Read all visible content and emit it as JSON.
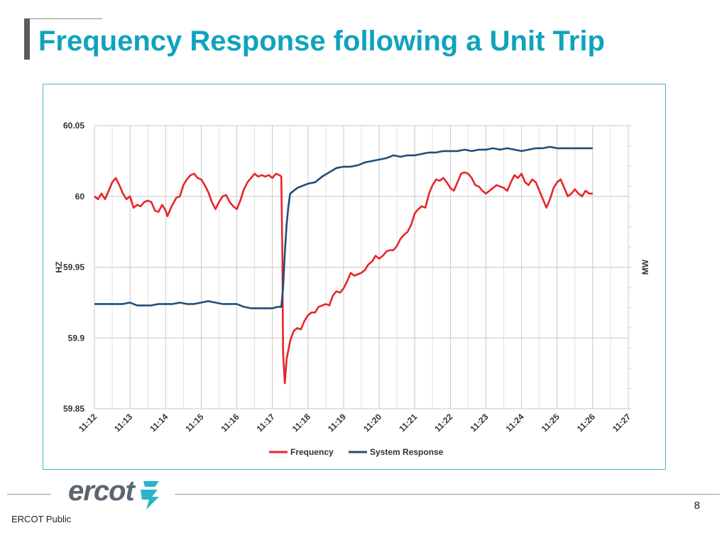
{
  "slide": {
    "title": "Frequency Response following a Unit Trip",
    "page_number": "8",
    "classification": "ERCOT Public",
    "logo_text": "ercot"
  },
  "colors": {
    "title": "#0fa3bd",
    "frequency": "#e8252b",
    "system_response": "#1f4e79",
    "frame": "#49b4c6"
  },
  "chart_data": {
    "type": "line",
    "ylabel": "HZ",
    "y2label": "MW",
    "ylim": [
      59.85,
      60.05
    ],
    "yticks": [
      60.05,
      60,
      59.95,
      59.9,
      59.85
    ],
    "ytick_labels": [
      "60.05",
      "60",
      "59.95",
      "59.9",
      "59.85"
    ],
    "xlim": [
      0,
      15
    ],
    "xtick_labels": [
      "11:12",
      "11:13",
      "11:14",
      "11:15",
      "11:16",
      "11:17",
      "11:18",
      "11:19",
      "11:20",
      "11:21",
      "11:22",
      "11:23",
      "11:24",
      "11:25",
      "11:26",
      "11:27"
    ],
    "grid": true,
    "legend_position": "bottom",
    "series": [
      {
        "name": "Frequency",
        "color": "#e8252b",
        "points": [
          [
            0.0,
            60.0
          ],
          [
            0.1,
            59.998
          ],
          [
            0.2,
            60.002
          ],
          [
            0.3,
            59.998
          ],
          [
            0.4,
            60.004
          ],
          [
            0.5,
            60.01
          ],
          [
            0.6,
            60.013
          ],
          [
            0.7,
            60.008
          ],
          [
            0.8,
            60.002
          ],
          [
            0.9,
            59.998
          ],
          [
            1.0,
            60.0
          ],
          [
            1.05,
            59.996
          ],
          [
            1.1,
            59.992
          ],
          [
            1.2,
            59.994
          ],
          [
            1.3,
            59.993
          ],
          [
            1.4,
            59.996
          ],
          [
            1.5,
            59.997
          ],
          [
            1.6,
            59.996
          ],
          [
            1.7,
            59.99
          ],
          [
            1.8,
            59.989
          ],
          [
            1.9,
            59.994
          ],
          [
            2.0,
            59.99
          ],
          [
            2.05,
            59.986
          ],
          [
            2.15,
            59.992
          ],
          [
            2.3,
            59.999
          ],
          [
            2.4,
            60.0
          ],
          [
            2.5,
            60.008
          ],
          [
            2.6,
            60.012
          ],
          [
            2.7,
            60.015
          ],
          [
            2.8,
            60.016
          ],
          [
            2.9,
            60.013
          ],
          [
            3.0,
            60.012
          ],
          [
            3.1,
            60.008
          ],
          [
            3.2,
            60.003
          ],
          [
            3.3,
            59.996
          ],
          [
            3.4,
            59.991
          ],
          [
            3.5,
            59.996
          ],
          [
            3.6,
            60.0
          ],
          [
            3.7,
            60.001
          ],
          [
            3.8,
            59.996
          ],
          [
            3.9,
            59.993
          ],
          [
            4.0,
            59.991
          ],
          [
            4.1,
            59.997
          ],
          [
            4.2,
            60.005
          ],
          [
            4.3,
            60.01
          ],
          [
            4.4,
            60.013
          ],
          [
            4.5,
            60.016
          ],
          [
            4.6,
            60.014
          ],
          [
            4.7,
            60.015
          ],
          [
            4.8,
            60.014
          ],
          [
            4.9,
            60.015
          ],
          [
            5.0,
            60.013
          ],
          [
            5.1,
            60.016
          ],
          [
            5.2,
            60.015
          ],
          [
            5.25,
            60.014
          ],
          [
            5.28,
            59.96
          ],
          [
            5.3,
            59.89
          ],
          [
            5.35,
            59.868
          ],
          [
            5.4,
            59.885
          ],
          [
            5.5,
            59.898
          ],
          [
            5.6,
            59.905
          ],
          [
            5.7,
            59.907
          ],
          [
            5.8,
            59.906
          ],
          [
            5.9,
            59.912
          ],
          [
            6.0,
            59.916
          ],
          [
            6.1,
            59.918
          ],
          [
            6.2,
            59.918
          ],
          [
            6.3,
            59.922
          ],
          [
            6.4,
            59.923
          ],
          [
            6.5,
            59.924
          ],
          [
            6.6,
            59.923
          ],
          [
            6.7,
            59.93
          ],
          [
            6.8,
            59.933
          ],
          [
            6.9,
            59.932
          ],
          [
            7.0,
            59.935
          ],
          [
            7.1,
            59.94
          ],
          [
            7.2,
            59.946
          ],
          [
            7.3,
            59.944
          ],
          [
            7.4,
            59.945
          ],
          [
            7.5,
            59.946
          ],
          [
            7.6,
            59.948
          ],
          [
            7.7,
            59.952
          ],
          [
            7.8,
            59.954
          ],
          [
            7.9,
            59.958
          ],
          [
            8.0,
            59.956
          ],
          [
            8.1,
            59.958
          ],
          [
            8.2,
            59.961
          ],
          [
            8.3,
            59.962
          ],
          [
            8.4,
            59.962
          ],
          [
            8.5,
            59.965
          ],
          [
            8.6,
            59.97
          ],
          [
            8.7,
            59.973
          ],
          [
            8.8,
            59.975
          ],
          [
            8.9,
            59.98
          ],
          [
            9.0,
            59.988
          ],
          [
            9.1,
            59.991
          ],
          [
            9.2,
            59.993
          ],
          [
            9.3,
            59.992
          ],
          [
            9.4,
            60.002
          ],
          [
            9.5,
            60.008
          ],
          [
            9.6,
            60.012
          ],
          [
            9.7,
            60.011
          ],
          [
            9.8,
            60.013
          ],
          [
            9.9,
            60.01
          ],
          [
            10.0,
            60.006
          ],
          [
            10.1,
            60.004
          ],
          [
            10.2,
            60.01
          ],
          [
            10.3,
            60.016
          ],
          [
            10.4,
            60.017
          ],
          [
            10.5,
            60.016
          ],
          [
            10.6,
            60.013
          ],
          [
            10.7,
            60.008
          ],
          [
            10.8,
            60.007
          ],
          [
            10.9,
            60.004
          ],
          [
            11.0,
            60.002
          ],
          [
            11.1,
            60.004
          ],
          [
            11.2,
            60.006
          ],
          [
            11.3,
            60.008
          ],
          [
            11.4,
            60.007
          ],
          [
            11.5,
            60.006
          ],
          [
            11.6,
            60.004
          ],
          [
            11.7,
            60.01
          ],
          [
            11.8,
            60.015
          ],
          [
            11.9,
            60.013
          ],
          [
            12.0,
            60.016
          ],
          [
            12.1,
            60.01
          ],
          [
            12.2,
            60.008
          ],
          [
            12.3,
            60.012
          ],
          [
            12.4,
            60.01
          ],
          [
            12.5,
            60.004
          ],
          [
            12.6,
            59.998
          ],
          [
            12.7,
            59.992
          ],
          [
            12.8,
            59.998
          ],
          [
            12.9,
            60.006
          ],
          [
            13.0,
            60.01
          ],
          [
            13.1,
            60.012
          ],
          [
            13.2,
            60.006
          ],
          [
            13.3,
            60.0
          ],
          [
            13.4,
            60.002
          ],
          [
            13.5,
            60.005
          ],
          [
            13.6,
            60.002
          ],
          [
            13.7,
            60.0
          ],
          [
            13.8,
            60.004
          ],
          [
            13.9,
            60.002
          ],
          [
            14.0,
            60.002
          ]
        ]
      },
      {
        "name": "System Response",
        "color": "#1f4e79",
        "points": [
          [
            0.0,
            59.924
          ],
          [
            0.2,
            59.924
          ],
          [
            0.4,
            59.924
          ],
          [
            0.6,
            59.924
          ],
          [
            0.8,
            59.924
          ],
          [
            1.0,
            59.925
          ],
          [
            1.2,
            59.923
          ],
          [
            1.4,
            59.923
          ],
          [
            1.6,
            59.923
          ],
          [
            1.8,
            59.924
          ],
          [
            2.0,
            59.924
          ],
          [
            2.2,
            59.924
          ],
          [
            2.4,
            59.925
          ],
          [
            2.6,
            59.924
          ],
          [
            2.8,
            59.924
          ],
          [
            3.0,
            59.925
          ],
          [
            3.2,
            59.926
          ],
          [
            3.4,
            59.925
          ],
          [
            3.6,
            59.924
          ],
          [
            3.8,
            59.924
          ],
          [
            4.0,
            59.924
          ],
          [
            4.2,
            59.922
          ],
          [
            4.4,
            59.921
          ],
          [
            4.6,
            59.921
          ],
          [
            4.8,
            59.921
          ],
          [
            5.0,
            59.921
          ],
          [
            5.15,
            59.922
          ],
          [
            5.25,
            59.922
          ],
          [
            5.3,
            59.935
          ],
          [
            5.35,
            59.96
          ],
          [
            5.4,
            59.98
          ],
          [
            5.45,
            59.993
          ],
          [
            5.5,
            60.002
          ],
          [
            5.6,
            60.004
          ],
          [
            5.7,
            60.006
          ],
          [
            5.8,
            60.007
          ],
          [
            5.9,
            60.008
          ],
          [
            6.0,
            60.009
          ],
          [
            6.2,
            60.01
          ],
          [
            6.4,
            60.014
          ],
          [
            6.6,
            60.017
          ],
          [
            6.8,
            60.02
          ],
          [
            7.0,
            60.021
          ],
          [
            7.2,
            60.021
          ],
          [
            7.4,
            60.022
          ],
          [
            7.6,
            60.024
          ],
          [
            7.8,
            60.025
          ],
          [
            8.0,
            60.026
          ],
          [
            8.2,
            60.027
          ],
          [
            8.4,
            60.029
          ],
          [
            8.6,
            60.028
          ],
          [
            8.8,
            60.029
          ],
          [
            9.0,
            60.029
          ],
          [
            9.2,
            60.03
          ],
          [
            9.4,
            60.031
          ],
          [
            9.6,
            60.031
          ],
          [
            9.8,
            60.032
          ],
          [
            10.0,
            60.032
          ],
          [
            10.2,
            60.032
          ],
          [
            10.4,
            60.033
          ],
          [
            10.6,
            60.032
          ],
          [
            10.8,
            60.033
          ],
          [
            11.0,
            60.033
          ],
          [
            11.2,
            60.034
          ],
          [
            11.4,
            60.033
          ],
          [
            11.6,
            60.034
          ],
          [
            11.8,
            60.033
          ],
          [
            12.0,
            60.032
          ],
          [
            12.2,
            60.033
          ],
          [
            12.4,
            60.034
          ],
          [
            12.6,
            60.034
          ],
          [
            12.8,
            60.035
          ],
          [
            13.0,
            60.034
          ],
          [
            13.2,
            60.034
          ],
          [
            13.4,
            60.034
          ],
          [
            13.6,
            60.034
          ],
          [
            13.8,
            60.034
          ],
          [
            14.0,
            60.034
          ]
        ]
      }
    ]
  }
}
